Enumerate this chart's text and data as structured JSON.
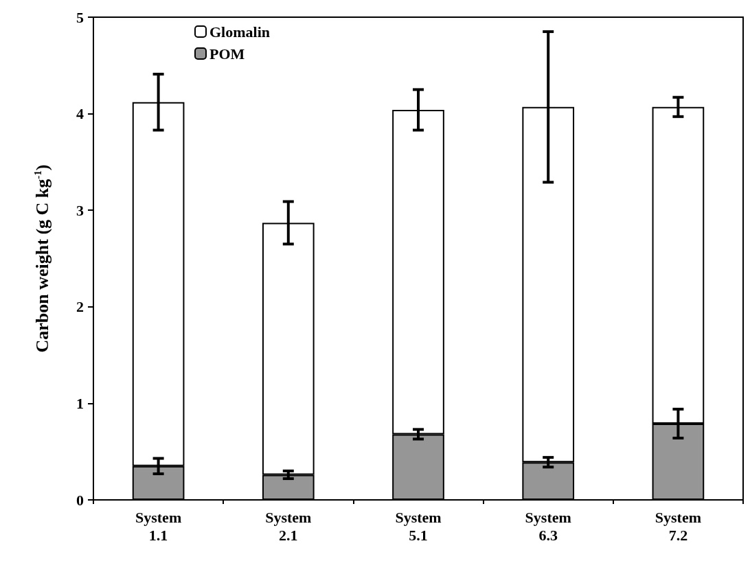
{
  "chart_data": {
    "type": "bar",
    "ylabel": "Carbon weight (g C kg$^{-1}$)",
    "categories": [
      "System\n1.1",
      "System\n2.1",
      "System\n5.1",
      "System\n6.3",
      "System\n7.2"
    ],
    "stacked": true,
    "series": [
      {
        "name": "POM",
        "color": "#969696",
        "values": [
          0.35,
          0.26,
          0.68,
          0.39,
          0.79
        ],
        "errors": [
          0.08,
          0.04,
          0.05,
          0.05,
          0.15
        ]
      },
      {
        "name": "Glomalin",
        "color": "#ffffff",
        "values": [
          3.77,
          2.61,
          3.36,
          3.68,
          3.28
        ],
        "errors": [
          0.29,
          0.22,
          0.21,
          0.78,
          0.1
        ]
      }
    ],
    "ylim": [
      0,
      5
    ],
    "yticks": [
      0,
      1,
      2,
      3,
      4,
      5
    ],
    "grid": false,
    "legend": "top left"
  }
}
